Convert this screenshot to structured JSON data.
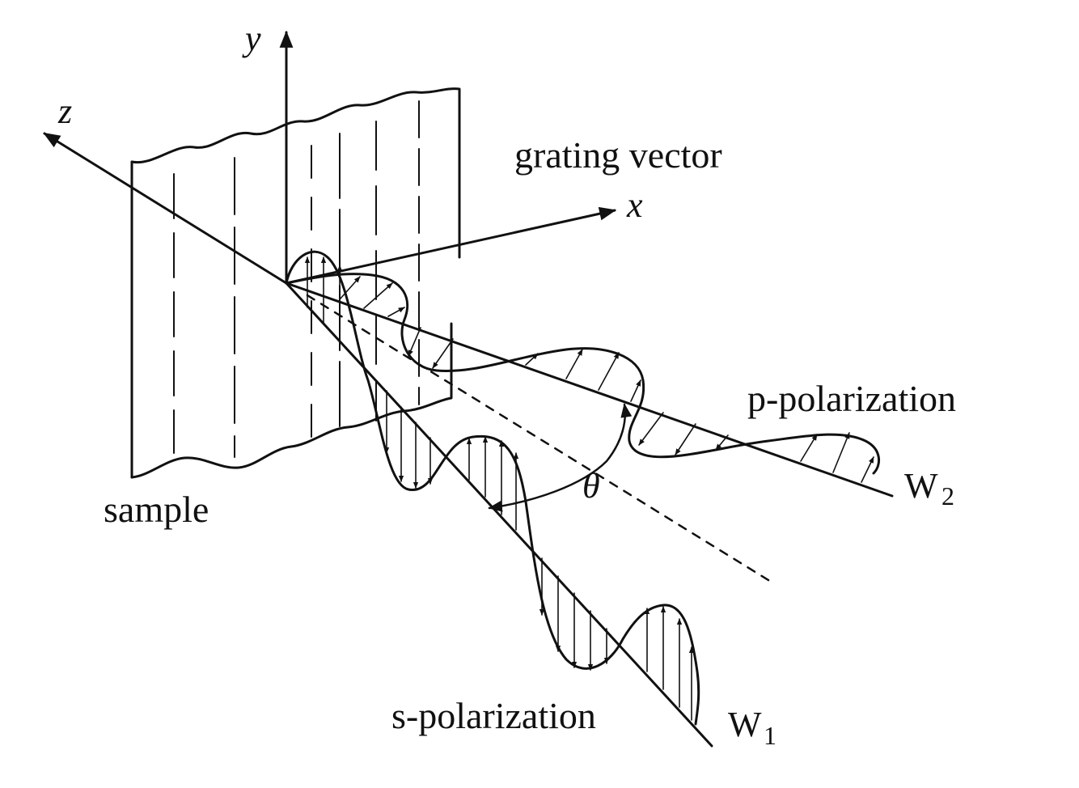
{
  "labels": {
    "y_axis": "y",
    "z_axis": "z",
    "x_axis": "x",
    "grating_vector": "grating vector",
    "sample": "sample",
    "p_polarization": "p-polarization",
    "s_polarization": "s-polarization",
    "angle": "θ",
    "wave1_letter": "W",
    "wave1_sub": "1",
    "wave2_letter": "W",
    "wave2_sub": "2"
  },
  "colors": {
    "ink": "#111111",
    "background": "#ffffff"
  }
}
